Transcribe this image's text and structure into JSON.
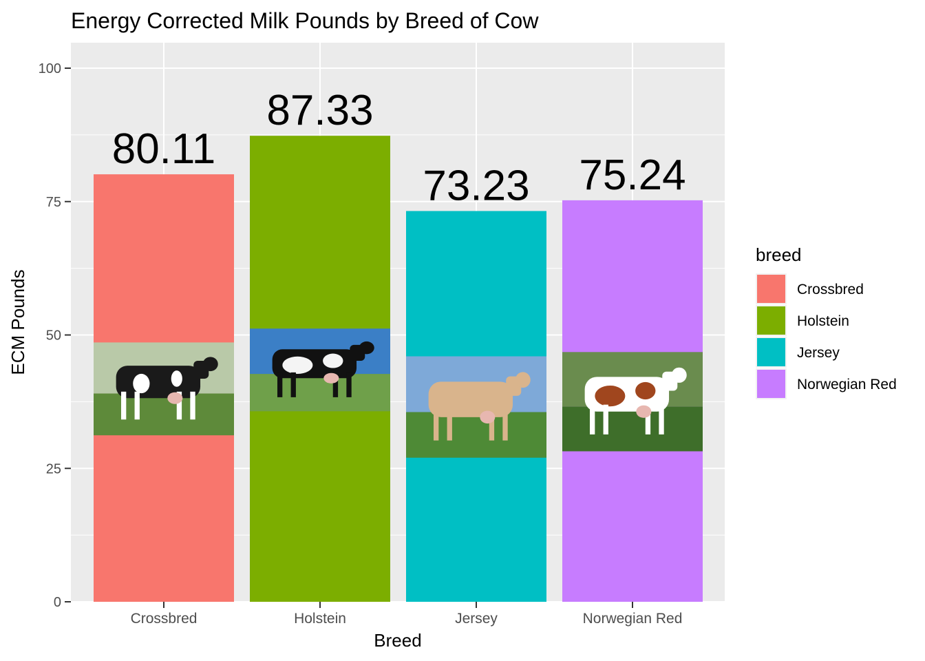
{
  "chart_data": {
    "type": "bar",
    "title": "Energy Corrected Milk Pounds by Breed of Cow",
    "xlabel": "Breed",
    "ylabel": "ECM Pounds",
    "categories": [
      "Crossbred",
      "Holstein",
      "Jersey",
      "Norwegian Red"
    ],
    "values": [
      80.11,
      87.33,
      73.23,
      75.24
    ],
    "value_labels": [
      "80.11",
      "87.33",
      "73.23",
      "75.24"
    ],
    "ylim": [
      0,
      100
    ],
    "yticks": [
      0,
      25,
      50,
      75,
      100
    ],
    "grid": true,
    "legend": {
      "title": "breed",
      "placement": "right",
      "entries": [
        "Crossbred",
        "Holstein",
        "Jersey",
        "Norwegian Red"
      ]
    },
    "colors": [
      "#F8766D",
      "#7CAE00",
      "#00BFC4",
      "#C77CFF"
    ],
    "panel_background": "#EBEBEB",
    "images": [
      {
        "category": "Crossbred",
        "icon": "black-cow-photo",
        "y_range": [
          31.2,
          48.6
        ]
      },
      {
        "category": "Holstein",
        "icon": "holstein-cow-photo",
        "y_range": [
          35.7,
          51.2
        ]
      },
      {
        "category": "Jersey",
        "icon": "jersey-cow-photo",
        "y_range": [
          27.0,
          46.0
        ]
      },
      {
        "category": "Norwegian Red",
        "icon": "norwegian-red-cow-photo",
        "y_range": [
          28.2,
          46.8
        ]
      }
    ]
  }
}
